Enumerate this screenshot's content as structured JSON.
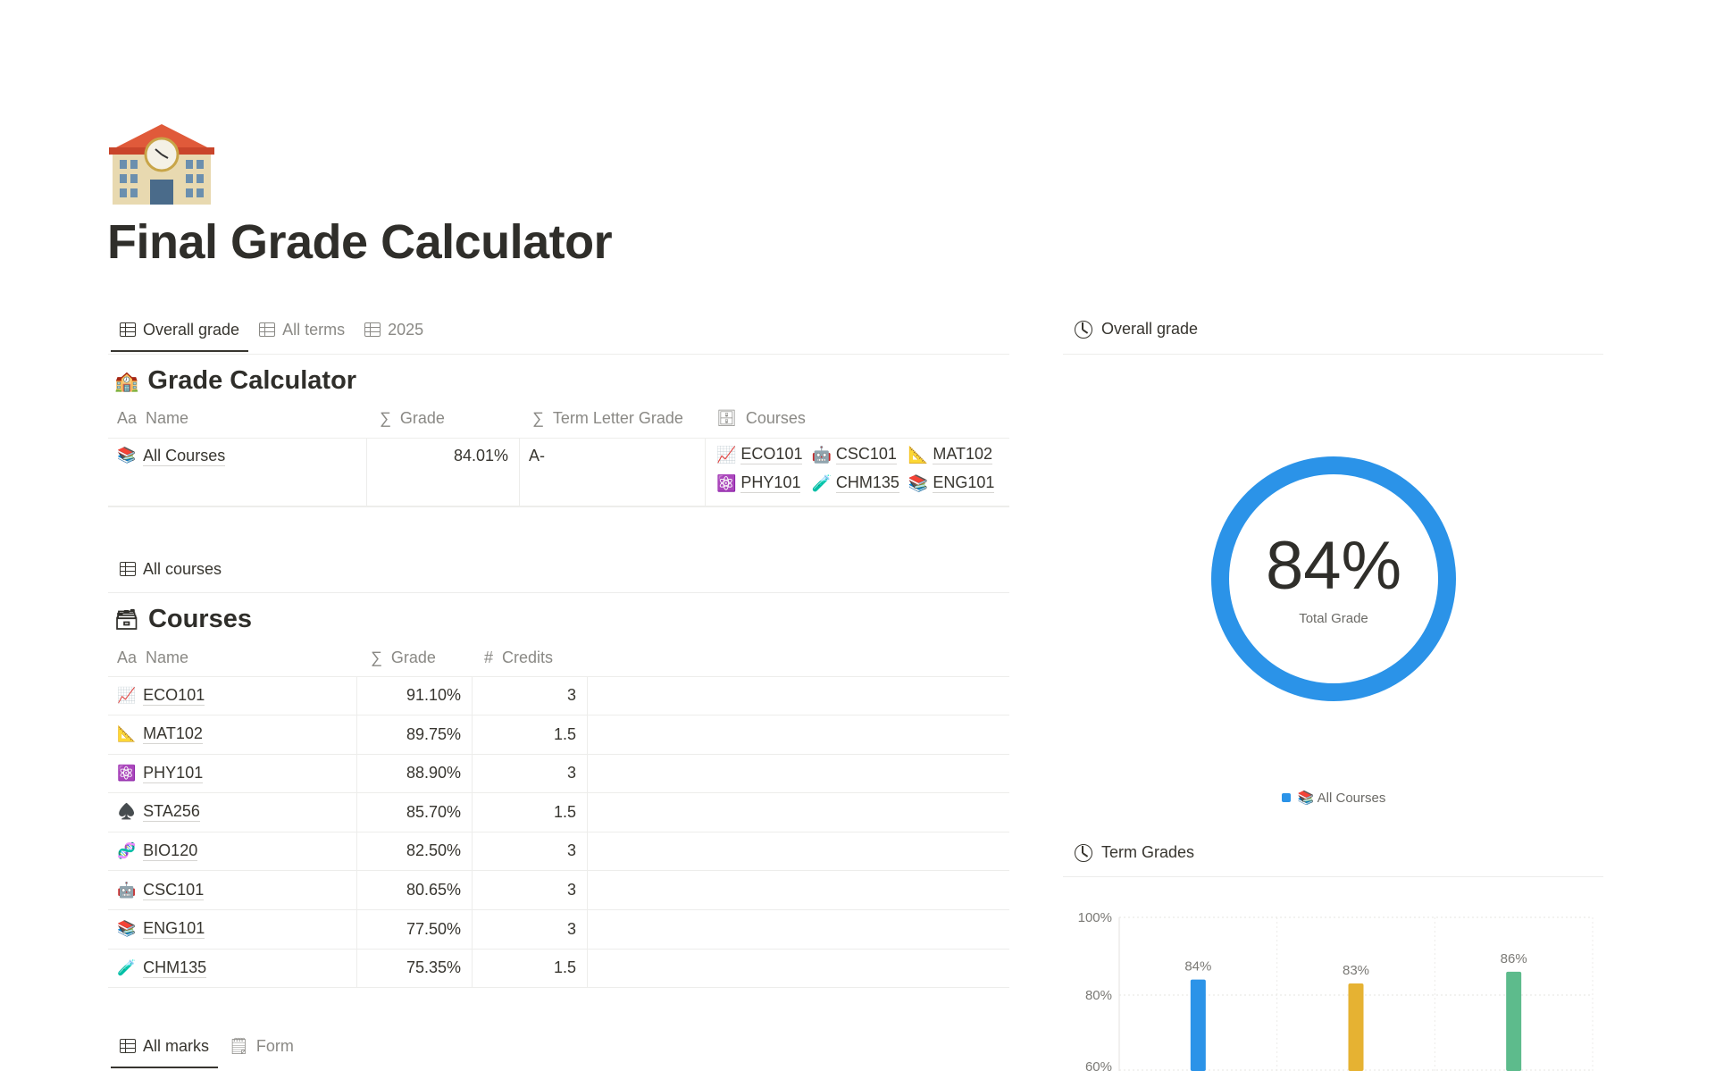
{
  "page": {
    "icon": "school-building-emoji",
    "title": "Final Grade Calculator"
  },
  "tabs_top": [
    {
      "label": "Overall grade",
      "active": true
    },
    {
      "label": "All terms"
    },
    {
      "label": "2025"
    }
  ],
  "grade_calculator": {
    "title": "Grade Calculator",
    "columns": [
      "Name",
      "Grade",
      "Term Letter Grade",
      "Courses"
    ],
    "rows": [
      {
        "emoji": "📚",
        "name": "All Courses",
        "grade": "84.01%",
        "letter": "A-",
        "courses": [
          {
            "emoji": "📈",
            "name": "ECO101"
          },
          {
            "emoji": "🤖",
            "name": "CSC101"
          },
          {
            "emoji": "📐",
            "name": "MAT102"
          },
          {
            "emoji": "⚛️",
            "name": "PHY101"
          },
          {
            "emoji": "🧪",
            "name": "CHM135"
          },
          {
            "emoji": "📚",
            "name": "ENG101"
          }
        ]
      }
    ]
  },
  "tabs_courses": [
    {
      "label": "All courses",
      "active": false
    }
  ],
  "courses": {
    "title": "Courses",
    "columns": [
      "Name",
      "Grade",
      "Credits"
    ],
    "rows": [
      {
        "emoji": "📈",
        "name": "ECO101",
        "grade": "91.10%",
        "credits": "3"
      },
      {
        "emoji": "📐",
        "name": "MAT102",
        "grade": "89.75%",
        "credits": "1.5"
      },
      {
        "emoji": "⚛️",
        "name": "PHY101",
        "grade": "88.90%",
        "credits": "3"
      },
      {
        "emoji": "♠️",
        "name": "STA256",
        "grade": "85.70%",
        "credits": "1.5"
      },
      {
        "emoji": "🧬",
        "name": "BIO120",
        "grade": "82.50%",
        "credits": "3"
      },
      {
        "emoji": "🤖",
        "name": "CSC101",
        "grade": "80.65%",
        "credits": "3"
      },
      {
        "emoji": "📚",
        "name": "ENG101",
        "grade": "77.50%",
        "credits": "3"
      },
      {
        "emoji": "🧪",
        "name": "CHM135",
        "grade": "75.35%",
        "credits": "1.5"
      }
    ]
  },
  "tabs_bottom": [
    {
      "label": "All marks",
      "active": true
    },
    {
      "label": "Form"
    }
  ],
  "overall_chart": {
    "header": "Overall grade",
    "value_label": "84%",
    "sub_label": "Total Grade",
    "legend": "📚 All Courses",
    "color": "#2b93e8"
  },
  "chart_data": [
    {
      "type": "pie",
      "title": "",
      "values": [
        84
      ],
      "value_label": "84%",
      "center_label": "Total Grade",
      "series": [
        {
          "name": "📚 All Courses",
          "values": [
            84
          ]
        }
      ],
      "colors": [
        "#2b93e8"
      ],
      "legend": "bottom"
    },
    {
      "type": "bar",
      "title": "",
      "categories": [
        "",
        "",
        ""
      ],
      "values": [
        84,
        83,
        86
      ],
      "data_labels": [
        "84%",
        "83%",
        "86%"
      ],
      "colors": [
        "#2b93e8",
        "#e6b232",
        "#5dbb8c"
      ],
      "yticks": [
        "100%",
        "80%",
        "60%"
      ],
      "ylim": [
        60,
        100
      ],
      "grid": true
    }
  ],
  "term_chart": {
    "header": "Term Grades"
  }
}
